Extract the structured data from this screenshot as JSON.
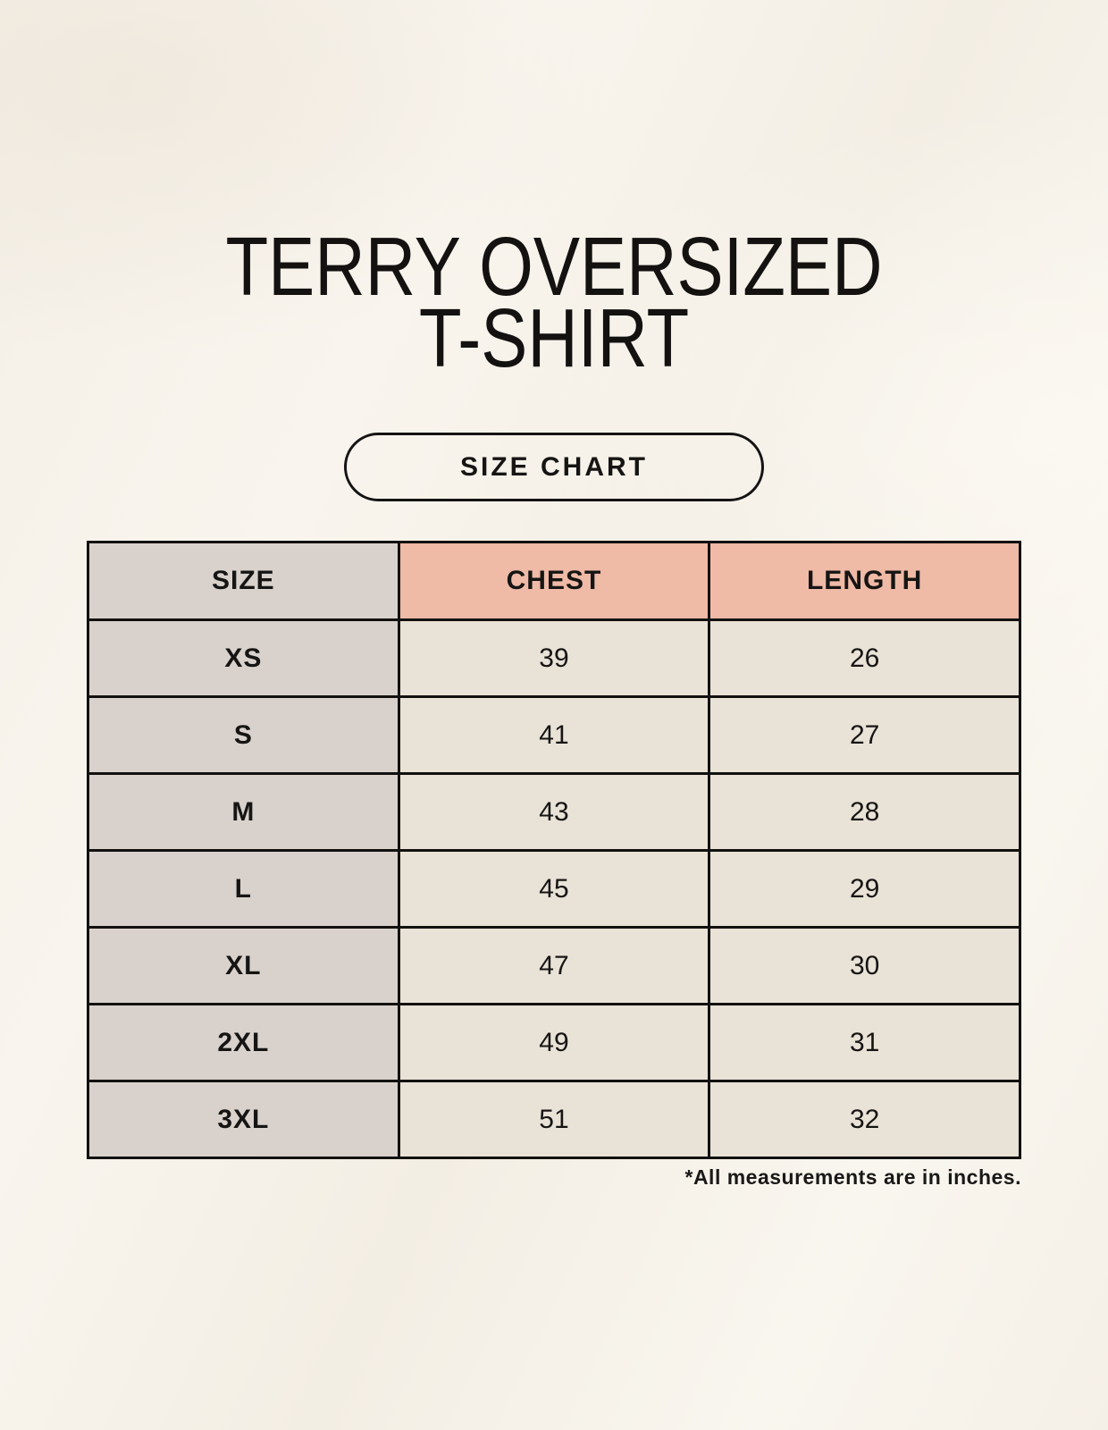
{
  "header": {
    "title_line1": "TERRY OVERSIZED",
    "title_line2": "T-SHIRT"
  },
  "button": {
    "label": "SIZE CHART"
  },
  "chart_data": {
    "type": "table",
    "title": "TERRY OVERSIZED T-SHIRT",
    "columns": [
      "SIZE",
      "CHEST",
      "LENGTH"
    ],
    "rows": [
      [
        "XS",
        39,
        26
      ],
      [
        "S",
        41,
        27
      ],
      [
        "M",
        43,
        28
      ],
      [
        "L",
        45,
        29
      ],
      [
        "XL",
        47,
        30
      ],
      [
        "2XL",
        49,
        31
      ],
      [
        "3XL",
        51,
        32
      ]
    ],
    "units_note": "*All measurements are in inches."
  },
  "footnote": {
    "text": "*All measurements are in inches."
  },
  "colors": {
    "background_cream": "#f7f3ec",
    "header_accent_salmon": "#efbaa6",
    "size_column_gray": "#d9d2cc",
    "data_cell_beige": "#e9e2d6",
    "border_black": "#121110",
    "text_black": "#161514"
  }
}
